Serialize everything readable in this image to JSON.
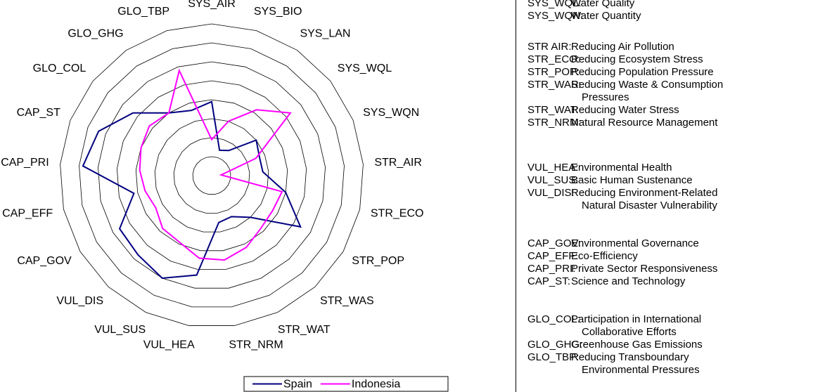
{
  "chart_data": {
    "type": "radar",
    "categories": [
      "SYS_AIR",
      "SYS_BIO",
      "SYS_LAN",
      "SYS_WQL",
      "SYS_WQN",
      "STR_AIR",
      "STR_ECO",
      "STR_POP",
      "STR_WAS",
      "STR_WAT",
      "STR_NRM",
      "VUL_HEA",
      "VUL_SUS",
      "VUL_DIS",
      "CAP_GOV",
      "CAP_EFF",
      "CAP_PRI",
      "CAP_ST",
      "GLO_COL",
      "GLO_GHG",
      "GLO_TBP"
    ],
    "series": [
      {
        "name": "Spain",
        "color": "#000080",
        "values": [
          39,
          14,
          16,
          30,
          27,
          27,
          40,
          54,
          30,
          24,
          25,
          53,
          60,
          57,
          56,
          42,
          68,
          64,
          53,
          40,
          36
        ]
      },
      {
        "name": "Indonesia",
        "color": "#ff00ff",
        "values": [
          19,
          30,
          42,
          53,
          25,
          5,
          38,
          37,
          38,
          42,
          45,
          44,
          39,
          38,
          34,
          36,
          38,
          40,
          42,
          40,
          58
        ]
      }
    ],
    "ylim": [
      0,
      80
    ],
    "yticks": [
      0,
      10,
      20,
      30,
      40,
      50,
      60,
      70,
      80
    ],
    "grid": true,
    "legend": "bottom"
  },
  "glossary": [
    [
      {
        "code": "SYS_WQL:",
        "lines": [
          "Water Quality"
        ]
      },
      {
        "code": "SYS_WQN:",
        "lines": [
          "Water Quantity"
        ]
      }
    ],
    [
      {
        "code": "STR AIR:",
        "lines": [
          "Reducing Air Pollution"
        ]
      },
      {
        "code": "STR_ECO:",
        "lines": [
          "Reducing Ecosystem Stress"
        ]
      },
      {
        "code": "STR_POP:",
        "lines": [
          "Reducing Population Pressure"
        ]
      },
      {
        "code": "STR_WAS:",
        "lines": [
          "Reducing Waste & Consumption",
          "Pressures"
        ]
      },
      {
        "code": "STR_WAT:",
        "lines": [
          "Reducing Water Stress"
        ]
      },
      {
        "code": "STR_NRM:",
        "lines": [
          "Natural Resource Management"
        ]
      }
    ],
    [
      {
        "code": "VUL_HEA:",
        "lines": [
          "Environmental Health"
        ]
      },
      {
        "code": "VUL_SUS:",
        "lines": [
          "Basic Human Sustenance"
        ]
      },
      {
        "code": "VUL_DIS:",
        "lines": [
          "Reducing Environment-Related",
          "Natural Disaster Vulnerability"
        ]
      }
    ],
    [
      {
        "code": "CAP_GOV:",
        "lines": [
          "Environmental Governance"
        ]
      },
      {
        "code": "CAP_EFF:",
        "lines": [
          "Eco-Efficiency"
        ]
      },
      {
        "code": "CAP_PRI:",
        "lines": [
          "Private Sector Responsiveness"
        ]
      },
      {
        "code": "CAP_ST:",
        "lines": [
          "Science and Technology"
        ]
      }
    ],
    [
      {
        "code": "GLO_COL:",
        "lines": [
          "Participation in International",
          "Collaborative Efforts"
        ]
      },
      {
        "code": "GLO_GHG:",
        "lines": [
          "Greenhouse Gas Emissions"
        ]
      },
      {
        "code": "GLO_TBP:",
        "lines": [
          "Reducing Transboundary",
          "Environmental Pressures"
        ]
      }
    ]
  ]
}
